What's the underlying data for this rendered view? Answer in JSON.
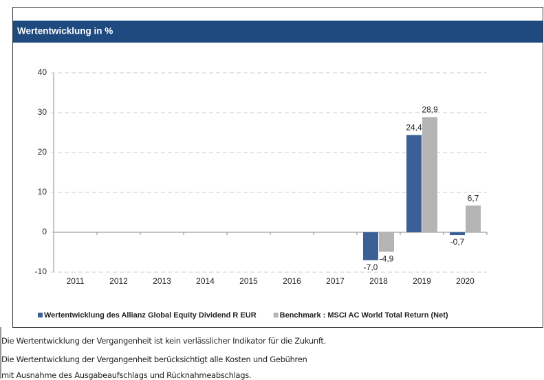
{
  "chart_data": {
    "type": "bar",
    "title": "Wertentwicklung in %",
    "categories": [
      "2011",
      "2012",
      "2013",
      "2014",
      "2015",
      "2016",
      "2017",
      "2018",
      "2019",
      "2020"
    ],
    "series": [
      {
        "name": "Wertentwicklung des Allianz Global Equity Dividend R EUR",
        "color": "#3b5f97",
        "values": [
          null,
          null,
          null,
          null,
          null,
          null,
          null,
          -7.0,
          24.4,
          -0.7
        ],
        "value_labels": [
          null,
          null,
          null,
          null,
          null,
          null,
          null,
          "-7,0",
          "24,4",
          "-0,7"
        ]
      },
      {
        "name": "Benchmark : MSCI AC World Total Return (Net)",
        "color": "#b4b4b4",
        "values": [
          null,
          null,
          null,
          null,
          null,
          null,
          null,
          -4.9,
          28.9,
          6.7
        ],
        "value_labels": [
          null,
          null,
          null,
          null,
          null,
          null,
          null,
          "-4,9",
          "28,9",
          "6,7"
        ]
      }
    ],
    "ylim": [
      -10,
      40
    ],
    "yticks": [
      -10,
      0,
      10,
      20,
      30,
      40
    ],
    "grid": true,
    "legend": "bottom"
  },
  "footnotes": [
    "Die Wertentwicklung der Vergangenheit ist kein verlässlicher Indikator für die Zukunft.",
    "Die Wertentwicklung der Vergangenheit berücksichtigt alle Kosten und Gebühren",
    "mit Ausnahme des Ausgabeaufschlags und Rücknahmeabschlags."
  ]
}
